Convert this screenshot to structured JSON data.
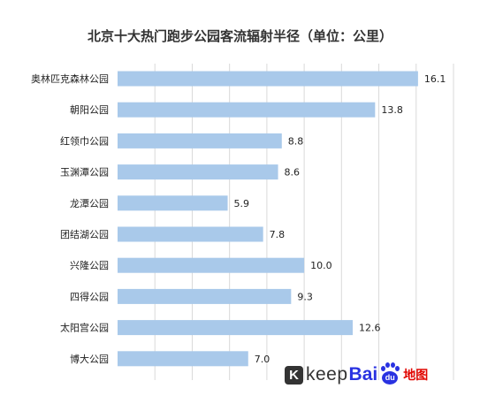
{
  "title": "北京十大热门跑步公园客流辐射半径（单位：公里）",
  "chart_data": {
    "type": "bar",
    "orientation": "horizontal",
    "title": "北京十大热门跑步公园客流辐射半径（单位：公里）",
    "categories": [
      "奥林匹克森林公园",
      "朝阳公园",
      "红领巾公园",
      "玉渊潭公园",
      "龙潭公园",
      "团结湖公园",
      "兴隆公园",
      "四得公园",
      "太阳宫公园",
      "博大公园"
    ],
    "values": [
      16.1,
      13.8,
      8.8,
      8.6,
      5.9,
      7.8,
      10.0,
      9.3,
      12.6,
      7.0
    ],
    "value_labels": [
      "16.1",
      "13.8",
      "8.8",
      "8.6",
      "5.9",
      "7.8",
      "10.0",
      "9.3",
      "12.6",
      "7.0"
    ],
    "xlim": [
      0,
      18
    ],
    "grid": true,
    "bar_color": "#a9c9ea"
  },
  "logos": {
    "keep_mark": "K",
    "keep_text": "keep",
    "baidu_text": "Bai",
    "baidu_paw": "du",
    "map_text": "地图",
    "keep_color": "#333333",
    "baidu_color": "#2932e1",
    "map_color": "#e10601"
  }
}
